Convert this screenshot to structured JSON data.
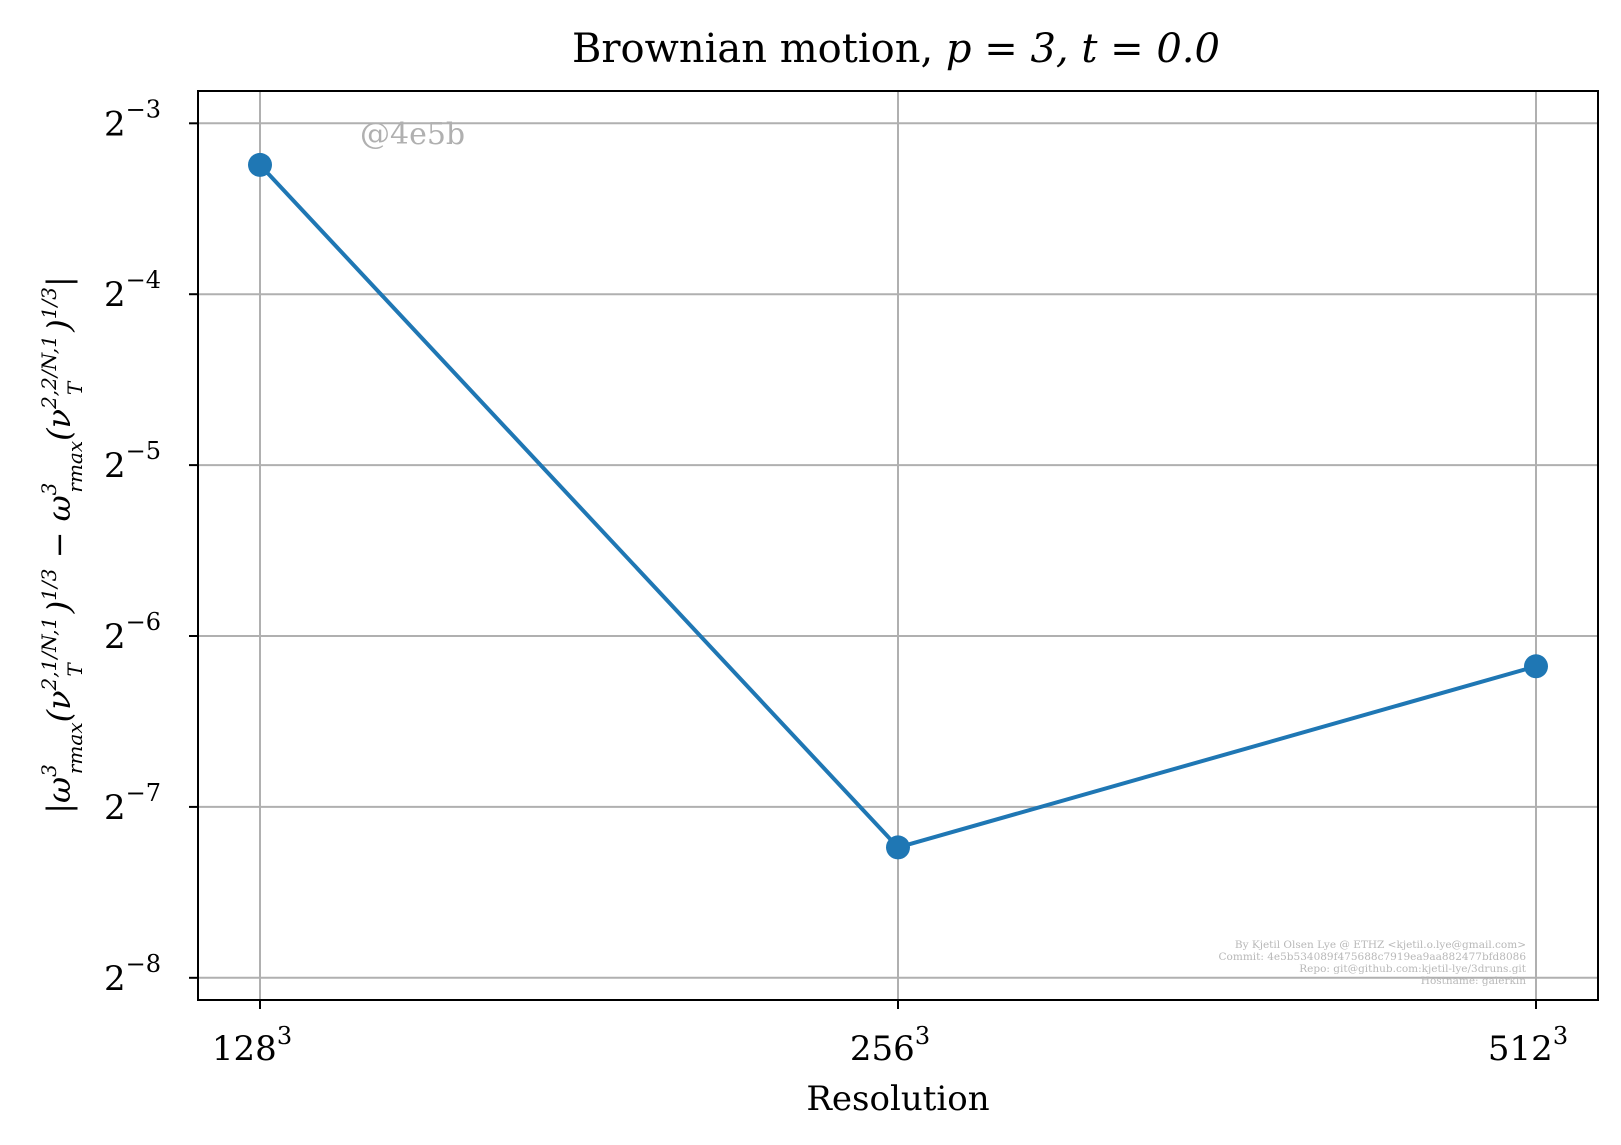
{
  "chart_data": {
    "type": "line",
    "title": {
      "prefix": "Brownian motion, ",
      "math": "p = 3, t = 0.0"
    },
    "xlabel": "Resolution",
    "ylabel": {
      "open": "|ω",
      "sup1": "3",
      "sub1": "rmax",
      "nu1": "(ν",
      "nu1_sup": "2,1/N,1",
      "nu1_sub": "T",
      "pow1": ")",
      "pow1_exp": "1/3",
      "minus": " − ω",
      "sup2": "3",
      "sub2": "rmax",
      "nu2": "(ν",
      "nu2_sup": "2,2/N,1",
      "nu2_sub": "T",
      "pow2": ")",
      "pow2_exp": "1/3",
      "close": "|"
    },
    "yscale": "log2",
    "ylim": [
      0.00357,
      0.1425
    ],
    "grid": true,
    "categories": [
      {
        "base": "128",
        "exp": "3"
      },
      {
        "base": "256",
        "exp": "3"
      },
      {
        "base": "512",
        "exp": "3"
      }
    ],
    "yticks": [
      {
        "base": "2",
        "exp": "−3",
        "value": 0.125
      },
      {
        "base": "2",
        "exp": "−4",
        "value": 0.0625
      },
      {
        "base": "2",
        "exp": "−5",
        "value": 0.03125
      },
      {
        "base": "2",
        "exp": "−6",
        "value": 0.015625
      },
      {
        "base": "2",
        "exp": "−7",
        "value": 0.0078125
      },
      {
        "base": "2",
        "exp": "−8",
        "value": 0.00390625
      }
    ],
    "series": [
      {
        "color": "#1f77b4",
        "marker": "circle",
        "values": [
          0.1056,
          0.00663,
          0.01382
        ]
      }
    ]
  },
  "watermark": "@4e5b",
  "credits": [
    "By Kjetil Olsen Lye @ ETHZ <kjetil.o.lye@gmail.com>",
    "Commit: 4e5b534089f475688c7919ea9aa882477bfd8086",
    "Repo: git@github.com:kjetil-lye/3druns.git",
    "Hostname: galerkin"
  ]
}
